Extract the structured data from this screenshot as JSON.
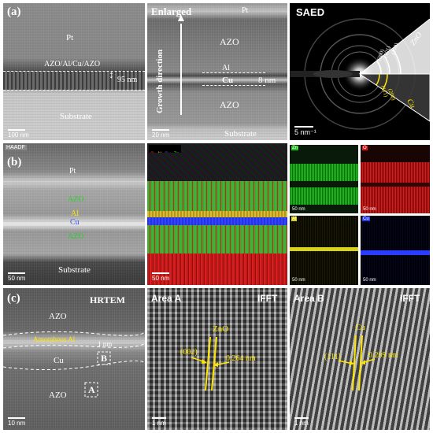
{
  "row_a": {
    "label": "(a)",
    "left": {
      "pt": "Pt",
      "stack": "AZO/Al/Cu/AZO",
      "thickness": "95 nm",
      "substrate": "Substrate",
      "scale": "100 nm"
    },
    "enlarged": {
      "title": "Enlarged",
      "pt": "Pt",
      "azo_top": "AZO",
      "al": "Al",
      "cu": "Cu",
      "azo_bottom": "AZO",
      "growth": "Growth direction",
      "thickness": "8 nm",
      "substrate": "Substrate",
      "scale": "20 nm"
    },
    "saed": {
      "title": "SAED",
      "zno": "ZnO",
      "cu": "Cu",
      "zno_rings": [
        "(200)",
        "(101)",
        "(100)"
      ],
      "cu_rings": [
        "(111)",
        "(200)"
      ],
      "scale": "5 nm⁻¹"
    }
  },
  "row_b": {
    "label": "(b)",
    "haadf_tag": "HAADF",
    "haadf": {
      "pt": "Pt",
      "azo_top": "AZO",
      "al": "Al",
      "cu": "Cu",
      "azo_bottom": "AZO",
      "substrate": "Substrate",
      "scale": "50 nm"
    },
    "composite_legend": [
      "O",
      "Al",
      "Cu",
      "Zn"
    ],
    "composite_scale": "50 nm",
    "maps": [
      {
        "element": "Zn",
        "color": "#1fc21f",
        "scale": "50 nm"
      },
      {
        "element": "O",
        "color": "#e01818",
        "scale": "50 nm"
      },
      {
        "element": "Al",
        "color": "#d8d21a",
        "scale": "50 nm"
      },
      {
        "element": "Cu",
        "color": "#2a3cff",
        "scale": "50 nm"
      }
    ]
  },
  "row_c": {
    "label": "(c)",
    "hrtem": {
      "title": "HRTEM",
      "azo_top": "AZO",
      "amorphous": "Amorphous Al",
      "thickness": "1 nm",
      "cu": "Cu",
      "box_b": "B",
      "box_a": "A",
      "azo_bottom": "AZO",
      "scale": "10 nm"
    },
    "area_a": {
      "title": "Area A",
      "ifft": "IFFT",
      "phase": "ZnO",
      "plane": "(002)",
      "spacing": "0.264 nm",
      "scale": "1 nm"
    },
    "area_b": {
      "title": "Area B",
      "ifft": "IFFT",
      "phase": "Cu",
      "plane": "(111)",
      "spacing": "0.209 nm",
      "scale": "1 nm"
    }
  }
}
